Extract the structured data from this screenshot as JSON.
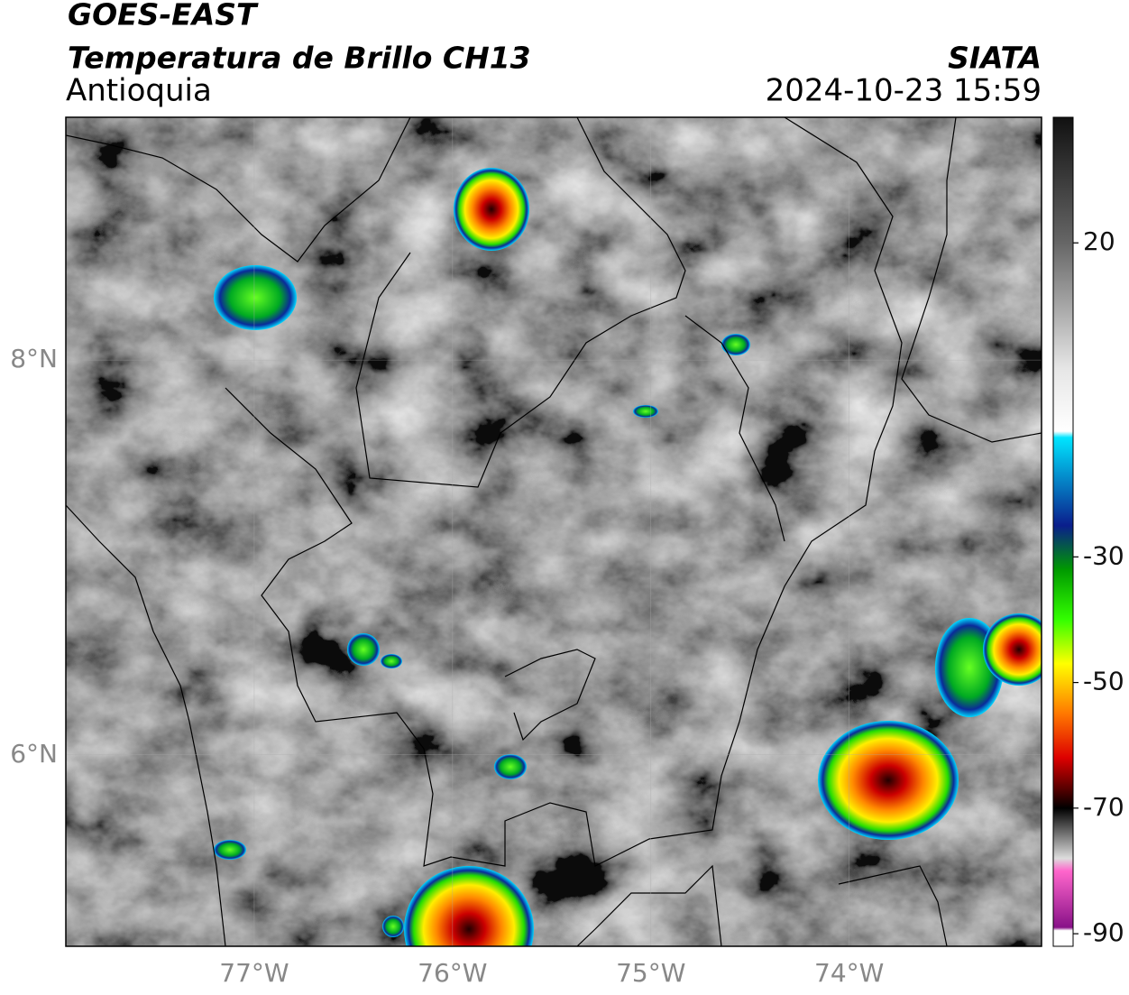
{
  "header": {
    "satellite": "GOES-EAST",
    "product": "Temperatura de Brillo CH13",
    "region": "Antioquia",
    "source": "SIATA",
    "datetime": "2024-10-23 15:59"
  },
  "map": {
    "xlim": [
      -77.95,
      -73.03
    ],
    "ylim": [
      5.03,
      9.23
    ],
    "xticks": [
      {
        "value": -77,
        "label": "77°W"
      },
      {
        "value": -76,
        "label": "76°W"
      },
      {
        "value": -75,
        "label": "75°W"
      },
      {
        "value": -74,
        "label": "74°W"
      }
    ],
    "yticks": [
      {
        "value": 8,
        "label": "8°N"
      },
      {
        "value": 6,
        "label": "6°N"
      }
    ],
    "grid": true
  },
  "colorbar": {
    "lim": [
      -92,
      40
    ],
    "ticks": [
      20,
      -30,
      -50,
      -70,
      -90
    ],
    "stops": [
      {
        "value": 40,
        "color": "#111111"
      },
      {
        "value": 20,
        "color": "#666666"
      },
      {
        "value": 0,
        "color": "#e6e6e6"
      },
      {
        "value": -10,
        "color": "#ffffff"
      },
      {
        "value": -11,
        "color": "#00e5ff"
      },
      {
        "value": -25,
        "color": "#0a1e8c"
      },
      {
        "value": -32,
        "color": "#009900"
      },
      {
        "value": -40,
        "color": "#33ff00"
      },
      {
        "value": -47,
        "color": "#ffff00"
      },
      {
        "value": -55,
        "color": "#ff7700"
      },
      {
        "value": -62,
        "color": "#dd0000"
      },
      {
        "value": -67,
        "color": "#550000"
      },
      {
        "value": -70,
        "color": "#000000"
      },
      {
        "value": -78,
        "color": "#dddddd"
      },
      {
        "value": -80,
        "color": "#ff66cc"
      },
      {
        "value": -89,
        "color": "#881188"
      },
      {
        "value": -89.5,
        "color": "#ffffff"
      }
    ]
  }
}
